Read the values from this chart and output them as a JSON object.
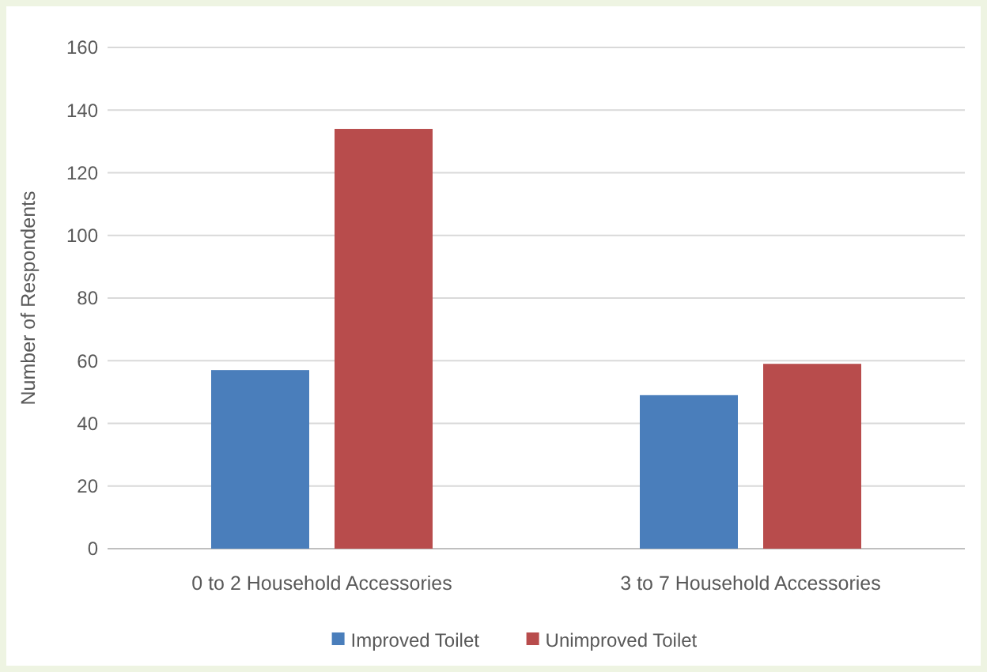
{
  "chart_data": {
    "type": "bar",
    "ylabel": "Number of Respondents",
    "categories": [
      "0 to 2 Household Accessories",
      "3 to 7 Household Accessories"
    ],
    "series": [
      {
        "name": "Improved Toilet",
        "color": "#4a7ebb",
        "values": [
          57,
          49
        ]
      },
      {
        "name": "Unimproved Toilet",
        "color": "#b84c4c",
        "values": [
          134,
          59
        ]
      }
    ],
    "ylim": [
      0,
      160
    ],
    "yticks": [
      0,
      20,
      40,
      60,
      80,
      100,
      120,
      140,
      160
    ],
    "grid": "y",
    "legend": "bottom"
  }
}
